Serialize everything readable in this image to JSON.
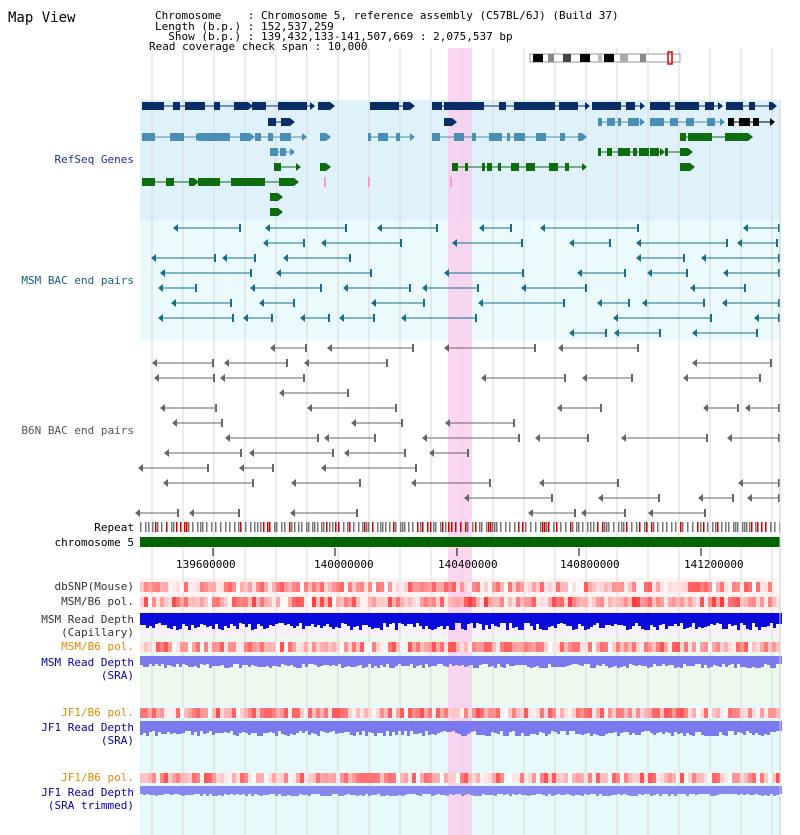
{
  "header": {
    "title": "Map View",
    "chromosome_line": "Chromosome    : Chromosome 5, reference assembly (C57BL/6J) (Build 37)",
    "length_line": "Length (b.p.) : 152,537,259",
    "show_line": "  Show (b.p.) : 139,432,133-141,507,669 : 2,075,537 bp",
    "coverage_line": "Read coverage check span : 10,000"
  },
  "tracks": {
    "refseq": "RefSeq Genes",
    "msm_bac": "MSM BAC end pairs",
    "b6n_bac": "B6N BAC end pairs",
    "repeat": "Repeat",
    "chromosome": "chromosome 5",
    "dbsnp": "dbSNP(Mouse)",
    "msm_b6_pol": "MSM/B6 pol.",
    "msm_depth_cap_1": "MSM Read Depth",
    "msm_depth_cap_2": "(Capillary)",
    "msm_b6_pol_2": "MSM/B6 pol.",
    "msm_depth_sra_1": "MSM Read Depth",
    "msm_depth_sra_2": "(SRA)",
    "jf1_b6_pol": "JF1/B6 pol.",
    "jf1_depth_sra_1": "JF1 Read Depth",
    "jf1_depth_sra_2": "(SRA)",
    "jf1_b6_pol_2": "JF1/B6 pol.",
    "jf1_depth_trim_1": "JF1 Read Depth",
    "jf1_depth_trim_2": "(SRA trimmed)"
  },
  "axis": {
    "ticks": [
      "139600000",
      "140000000",
      "140400000",
      "140800000",
      "141200000"
    ]
  },
  "colors": {
    "refseq_dark": "#0b2d66",
    "refseq_mid": "#4a8fb3",
    "refseq_green": "#0e6b0e",
    "msm_line": "#1a6d8a",
    "b6n_line": "#666666",
    "highlight": "#f9c9ee",
    "chromosome": "#006400",
    "label_blue": "#0000aa",
    "label_orange": "#e08a00",
    "msm_label": "#1a5e7a"
  }
}
